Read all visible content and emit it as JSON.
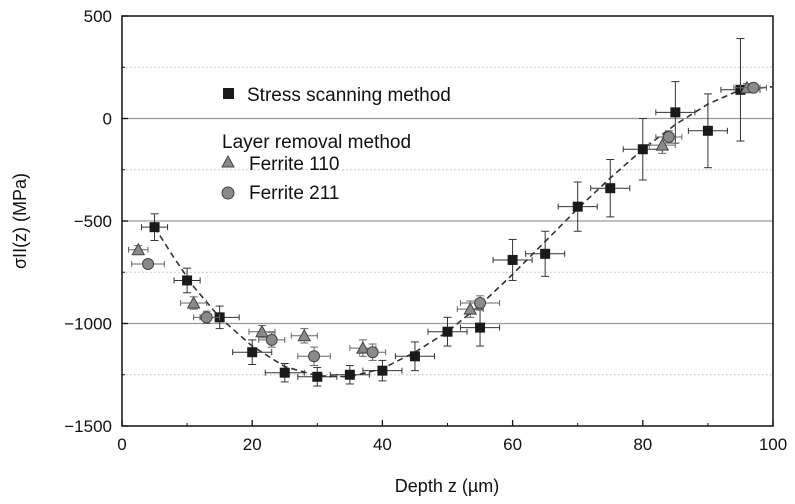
{
  "chart_data": {
    "type": "scatter",
    "title": "",
    "xlabel": "Depth z (µm)",
    "ylabel": "σII(z) (MPa)",
    "xlim": [
      0,
      100
    ],
    "ylim": [
      -1500,
      500
    ],
    "xticks": [
      0,
      20,
      40,
      60,
      80,
      100
    ],
    "yticks": [
      -1500,
      -1000,
      -500,
      0,
      500
    ],
    "grid": "horizontal, every 250 MPa (solid at major ticks, dotted between)",
    "legend_position": "top-left",
    "legend": {
      "item1": "Stress scanning method",
      "group_title": "Layer removal method",
      "item2": "Ferrite 110",
      "item3": "Ferrite 211"
    },
    "series": [
      {
        "name": "Stress scanning method",
        "marker": "square",
        "color": "#1a1a1a",
        "points": [
          {
            "x": 5,
            "y": -530,
            "xerr": 2,
            "yerr": 65
          },
          {
            "x": 10,
            "y": -790,
            "xerr": 2,
            "yerr": 60
          },
          {
            "x": 15,
            "y": -970,
            "xerr": 3,
            "yerr": 55
          },
          {
            "x": 20,
            "y": -1140,
            "xerr": 3,
            "yerr": 60
          },
          {
            "x": 25,
            "y": -1240,
            "xerr": 3,
            "yerr": 45
          },
          {
            "x": 30,
            "y": -1260,
            "xerr": 3,
            "yerr": 45
          },
          {
            "x": 35,
            "y": -1250,
            "xerr": 3,
            "yerr": 45
          },
          {
            "x": 40,
            "y": -1230,
            "xerr": 3,
            "yerr": 50
          },
          {
            "x": 45,
            "y": -1160,
            "xerr": 3,
            "yerr": 70
          },
          {
            "x": 50,
            "y": -1040,
            "xerr": 3,
            "yerr": 70
          },
          {
            "x": 55,
            "y": -1020,
            "xerr": 3,
            "yerr": 90
          },
          {
            "x": 60,
            "y": -690,
            "xerr": 3,
            "yerr": 100
          },
          {
            "x": 65,
            "y": -660,
            "xerr": 3,
            "yerr": 110
          },
          {
            "x": 70,
            "y": -430,
            "xerr": 3,
            "yerr": 120
          },
          {
            "x": 75,
            "y": -340,
            "xerr": 3,
            "yerr": 140
          },
          {
            "x": 80,
            "y": -150,
            "xerr": 3,
            "yerr": 150
          },
          {
            "x": 85,
            "y": 30,
            "xerr": 3,
            "yerr": 150
          },
          {
            "x": 90,
            "y": -60,
            "xerr": 3,
            "yerr": 180
          },
          {
            "x": 95,
            "y": 140,
            "xerr": 3,
            "yerr": 250
          }
        ]
      },
      {
        "name": "Ferrite 110",
        "marker": "triangle",
        "color": "#8a8a8a",
        "points": [
          {
            "x": 2.5,
            "y": -640,
            "xerr": 1.5,
            "yerr": 20
          },
          {
            "x": 11,
            "y": -900,
            "xerr": 2,
            "yerr": 30
          },
          {
            "x": 21.5,
            "y": -1040,
            "xerr": 2,
            "yerr": 30
          },
          {
            "x": 28,
            "y": -1060,
            "xerr": 2,
            "yerr": 35
          },
          {
            "x": 37,
            "y": -1120,
            "xerr": 2,
            "yerr": 40
          },
          {
            "x": 53.5,
            "y": -930,
            "xerr": 2,
            "yerr": 40
          },
          {
            "x": 83,
            "y": -130,
            "xerr": 2,
            "yerr": 40
          },
          {
            "x": 96,
            "y": 150,
            "xerr": 2,
            "yerr": 20
          }
        ]
      },
      {
        "name": "Ferrite 211",
        "marker": "circle",
        "color": "#8a8a8a",
        "points": [
          {
            "x": 4,
            "y": -710,
            "xerr": 2.5,
            "yerr": 20
          },
          {
            "x": 13,
            "y": -970,
            "xerr": 2,
            "yerr": 30
          },
          {
            "x": 23,
            "y": -1080,
            "xerr": 2,
            "yerr": 35
          },
          {
            "x": 29.5,
            "y": -1160,
            "xerr": 2.5,
            "yerr": 45
          },
          {
            "x": 38.5,
            "y": -1140,
            "xerr": 2,
            "yerr": 40
          },
          {
            "x": 55,
            "y": -900,
            "xerr": 3,
            "yerr": 35
          },
          {
            "x": 84,
            "y": -90,
            "xerr": 2,
            "yerr": 30
          },
          {
            "x": 97,
            "y": 150,
            "xerr": 2,
            "yerr": 20
          }
        ]
      }
    ],
    "fit_curve": {
      "style": "dashed",
      "points": [
        [
          5,
          -530
        ],
        [
          8,
          -680
        ],
        [
          11,
          -820
        ],
        [
          15,
          -970
        ],
        [
          20,
          -1110
        ],
        [
          25,
          -1210
        ],
        [
          30,
          -1255
        ],
        [
          35,
          -1260
        ],
        [
          40,
          -1220
        ],
        [
          45,
          -1140
        ],
        [
          50,
          -1040
        ],
        [
          55,
          -910
        ],
        [
          60,
          -760
        ],
        [
          65,
          -600
        ],
        [
          70,
          -440
        ],
        [
          75,
          -290
        ],
        [
          80,
          -150
        ],
        [
          85,
          -30
        ],
        [
          90,
          70
        ],
        [
          95,
          140
        ],
        [
          100,
          155
        ]
      ]
    }
  }
}
